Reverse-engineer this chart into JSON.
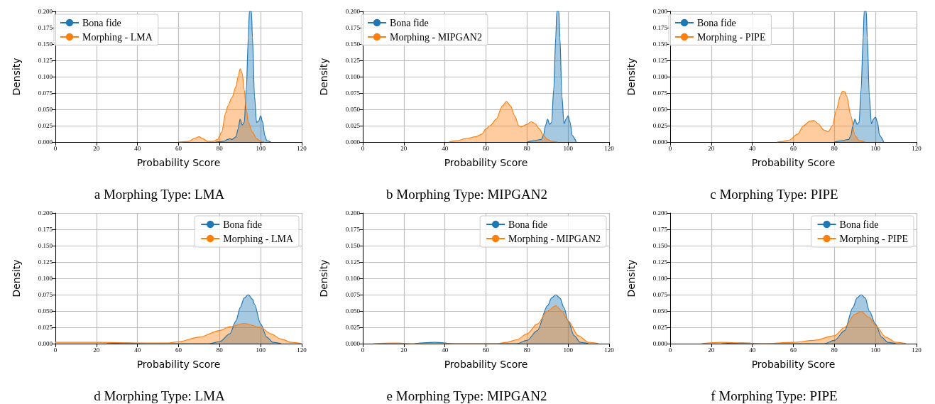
{
  "chart_data": [
    {
      "type": "area",
      "title": "a Morphing Type: LMA",
      "xlabel": "Probability Score",
      "ylabel": "Density",
      "xlim": [
        0,
        120
      ],
      "ylim": [
        0,
        0.2
      ],
      "xticks": [
        0,
        20,
        40,
        60,
        80,
        100,
        120
      ],
      "yticks": [
        {
          "value": 0,
          "label": "0.000"
        },
        0.025,
        {
          "value": 0.05,
          "label": "0.050"
        },
        0.075,
        {
          "value": 0.1,
          "label": "0.100"
        },
        0.125,
        {
          "value": 0.15,
          "label": "0.150"
        },
        0.175,
        {
          "value": 0.2,
          "label": "0.200"
        }
      ],
      "grid": true,
      "legend": "top left",
      "series": [
        {
          "name": "Bona fide",
          "color": "#1f77b4",
          "x": [
            78,
            82,
            84,
            85,
            86,
            88,
            89,
            90,
            91,
            92,
            93,
            94,
            94.5,
            95.5,
            96,
            97,
            98,
            99,
            100,
            101,
            102,
            103,
            105
          ],
          "values": [
            0,
            0.001,
            0.004,
            0.005,
            0.004,
            0.008,
            0.02,
            0.035,
            0.026,
            0.03,
            0.08,
            0.16,
            0.2,
            0.2,
            0.16,
            0.07,
            0.03,
            0.032,
            0.04,
            0.03,
            0.01,
            0.002,
            0
          ]
        },
        {
          "name": "Morphing - LMA",
          "color": "#ff7f0e",
          "x": [
            60,
            65,
            68,
            70,
            72,
            74,
            77,
            79,
            81,
            83,
            84,
            86,
            88,
            89,
            90,
            91,
            92,
            93,
            94,
            96,
            98,
            100,
            102
          ],
          "values": [
            0,
            0.001,
            0.006,
            0.008,
            0.005,
            0.001,
            0.001,
            0.004,
            0.015,
            0.045,
            0.055,
            0.068,
            0.085,
            0.1,
            0.112,
            0.105,
            0.08,
            0.05,
            0.03,
            0.015,
            0.005,
            0.001,
            0
          ]
        }
      ]
    },
    {
      "type": "area",
      "title": "b Morphing Type: MIPGAN2",
      "xlabel": "Probability Score",
      "ylabel": "Density",
      "xlim": [
        0,
        120
      ],
      "ylim": [
        0,
        0.2
      ],
      "xticks": [
        0,
        20,
        40,
        60,
        80,
        100,
        120
      ],
      "yticks": [
        {
          "value": 0,
          "label": "0.000"
        },
        0.025,
        {
          "value": 0.05,
          "label": "0.050"
        },
        0.075,
        {
          "value": 0.1,
          "label": "0.100"
        },
        0.125,
        {
          "value": 0.15,
          "label": "0.150"
        },
        0.175,
        {
          "value": 0.2,
          "label": "0.200"
        }
      ],
      "grid": true,
      "legend": "top left",
      "series": [
        {
          "name": "Bona fide",
          "color": "#1f77b4",
          "x": [
            80,
            84,
            85,
            87,
            88,
            89,
            90,
            91,
            92,
            93,
            94,
            94.5,
            95.5,
            96,
            97,
            98,
            99,
            100,
            101,
            102,
            104
          ],
          "values": [
            0,
            0.002,
            0.003,
            0.004,
            0.01,
            0.025,
            0.035,
            0.027,
            0.03,
            0.08,
            0.16,
            0.2,
            0.2,
            0.16,
            0.07,
            0.028,
            0.035,
            0.04,
            0.03,
            0.01,
            0
          ]
        },
        {
          "name": "Morphing - MIPGAN2",
          "color": "#ff7f0e",
          "x": [
            42,
            46,
            50,
            55,
            58,
            60,
            62,
            65,
            68,
            70,
            72,
            74,
            76,
            77,
            80,
            82,
            84,
            86,
            88,
            90,
            92,
            95
          ],
          "values": [
            0,
            0.002,
            0.005,
            0.008,
            0.012,
            0.02,
            0.025,
            0.035,
            0.055,
            0.062,
            0.055,
            0.04,
            0.025,
            0.023,
            0.027,
            0.031,
            0.028,
            0.02,
            0.01,
            0.004,
            0.001,
            0
          ]
        }
      ]
    },
    {
      "type": "area",
      "title": "c Morphing Type: PIPE",
      "xlabel": "Probability Score",
      "ylabel": "Density",
      "xlim": [
        0,
        120
      ],
      "ylim": [
        0,
        0.2
      ],
      "xticks": [
        0,
        20,
        40,
        60,
        80,
        100,
        120
      ],
      "yticks": [
        {
          "value": 0,
          "label": "0.000"
        },
        0.025,
        {
          "value": 0.05,
          "label": "0.050"
        },
        0.075,
        {
          "value": 0.1,
          "label": "0.100"
        },
        0.125,
        {
          "value": 0.15,
          "label": "0.150"
        },
        0.175,
        {
          "value": 0.2,
          "label": "0.200"
        }
      ],
      "grid": true,
      "legend": "top left",
      "series": [
        {
          "name": "Bona fide",
          "color": "#1f77b4",
          "x": [
            80,
            84,
            85,
            87,
            88,
            89,
            90,
            91,
            92,
            93,
            94,
            94.5,
            95.5,
            96,
            97,
            98,
            99,
            100,
            101,
            102,
            104
          ],
          "values": [
            0,
            0.002,
            0.003,
            0.004,
            0.01,
            0.025,
            0.035,
            0.027,
            0.03,
            0.08,
            0.16,
            0.2,
            0.2,
            0.16,
            0.07,
            0.028,
            0.035,
            0.038,
            0.03,
            0.01,
            0
          ]
        },
        {
          "name": "Morphing - PIPE",
          "color": "#ff7f0e",
          "x": [
            52,
            55,
            58,
            62,
            65,
            68,
            70,
            72,
            75,
            77,
            79,
            81,
            83,
            84,
            85,
            86,
            88,
            90,
            92,
            95
          ],
          "values": [
            0,
            0.001,
            0.003,
            0.012,
            0.025,
            0.032,
            0.033,
            0.028,
            0.018,
            0.016,
            0.025,
            0.05,
            0.072,
            0.078,
            0.077,
            0.07,
            0.04,
            0.01,
            0.002,
            0
          ]
        }
      ]
    },
    {
      "type": "area",
      "title": "d Morphing Type: LMA",
      "xlabel": "Probability Score",
      "ylabel": "Density",
      "xlim": [
        0,
        120
      ],
      "ylim": [
        0,
        0.2
      ],
      "xticks": [
        0,
        20,
        40,
        60,
        80,
        100,
        120
      ],
      "yticks": [
        {
          "value": 0,
          "label": "0.000"
        },
        0.025,
        {
          "value": 0.05,
          "label": "0.050"
        },
        0.075,
        {
          "value": 0.1,
          "label": "0.100"
        },
        0.125,
        {
          "value": 0.15,
          "label": "0.150"
        },
        0.175,
        {
          "value": 0.2,
          "label": "0.200"
        }
      ],
      "grid": true,
      "legend": "top right",
      "series": [
        {
          "name": "Bona fide",
          "color": "#1f77b4",
          "x": [
            25,
            35,
            45,
            75,
            80,
            85,
            88,
            90,
            92,
            94,
            96,
            97,
            100,
            103,
            106,
            110
          ],
          "values": [
            0,
            0.001,
            0,
            0,
            0.003,
            0.015,
            0.035,
            0.055,
            0.07,
            0.075,
            0.068,
            0.06,
            0.03,
            0.01,
            0.002,
            0
          ]
        },
        {
          "name": "Morphing - LMA",
          "color": "#ff7f0e",
          "x": [
            0,
            20,
            40,
            55,
            60,
            70,
            80,
            85,
            92,
            100,
            105,
            110,
            115,
            120
          ],
          "values": [
            0.002,
            0.002,
            0.001,
            0.001,
            0.003,
            0.01,
            0.02,
            0.026,
            0.031,
            0.025,
            0.015,
            0.007,
            0.002,
            0
          ]
        }
      ]
    },
    {
      "type": "area",
      "title": "e Morphing Type: MIPGAN2",
      "xlabel": "Probability Score",
      "ylabel": "Density",
      "xlim": [
        0,
        120
      ],
      "ylim": [
        0,
        0.2
      ],
      "xticks": [
        0,
        20,
        40,
        60,
        80,
        100,
        120
      ],
      "yticks": [
        {
          "value": 0,
          "label": "0.000"
        },
        0.025,
        {
          "value": 0.05,
          "label": "0.050"
        },
        0.075,
        {
          "value": 0.1,
          "label": "0.100"
        },
        0.125,
        {
          "value": 0.15,
          "label": "0.150"
        },
        0.175,
        {
          "value": 0.2,
          "label": "0.200"
        }
      ],
      "grid": true,
      "legend": "top right",
      "series": [
        {
          "name": "Bona fide",
          "color": "#1f77b4",
          "x": [
            25,
            35,
            45,
            75,
            80,
            85,
            90,
            92,
            94,
            96,
            98,
            100,
            103,
            106,
            110
          ],
          "values": [
            0,
            0.002,
            0,
            0,
            0.005,
            0.02,
            0.058,
            0.07,
            0.075,
            0.07,
            0.055,
            0.035,
            0.012,
            0.002,
            0
          ]
        },
        {
          "name": "Morphing - MIPGAN2",
          "color": "#ff7f0e",
          "x": [
            5,
            15,
            25,
            65,
            70,
            75,
            80,
            85,
            90,
            94,
            97,
            100,
            105,
            110,
            115
          ],
          "values": [
            0,
            0.001,
            0,
            0,
            0.002,
            0.006,
            0.015,
            0.03,
            0.05,
            0.058,
            0.05,
            0.035,
            0.012,
            0.002,
            0
          ]
        }
      ]
    },
    {
      "type": "area",
      "title": "f Morphing Type: PIPE",
      "xlabel": "Probability Score",
      "ylabel": "Density",
      "xlim": [
        0,
        120
      ],
      "ylim": [
        0,
        0.2
      ],
      "xticks": [
        0,
        20,
        40,
        60,
        80,
        100,
        120
      ],
      "yticks": [
        {
          "value": 0,
          "label": "0.000"
        },
        0.025,
        {
          "value": 0.05,
          "label": "0.050"
        },
        0.075,
        {
          "value": 0.1,
          "label": "0.100"
        },
        0.125,
        {
          "value": 0.15,
          "label": "0.150"
        },
        0.175,
        {
          "value": 0.2,
          "label": "0.200"
        }
      ],
      "grid": true,
      "legend": "top right",
      "series": [
        {
          "name": "Bona fide",
          "color": "#1f77b4",
          "x": [
            25,
            35,
            45,
            75,
            80,
            85,
            89,
            91,
            93,
            95,
            97,
            100,
            103,
            106,
            110
          ],
          "values": [
            0,
            0.001,
            0,
            0,
            0.005,
            0.02,
            0.055,
            0.07,
            0.075,
            0.07,
            0.05,
            0.03,
            0.01,
            0.002,
            0
          ]
        },
        {
          "name": "Morphing - PIPE",
          "color": "#ff7f0e",
          "x": [
            15,
            25,
            35,
            45,
            60,
            70,
            80,
            85,
            90,
            93,
            97,
            100,
            105,
            110,
            115
          ],
          "values": [
            0,
            0.002,
            0.001,
            0,
            0.002,
            0.005,
            0.012,
            0.025,
            0.045,
            0.049,
            0.04,
            0.028,
            0.01,
            0.002,
            0
          ]
        }
      ]
    }
  ]
}
